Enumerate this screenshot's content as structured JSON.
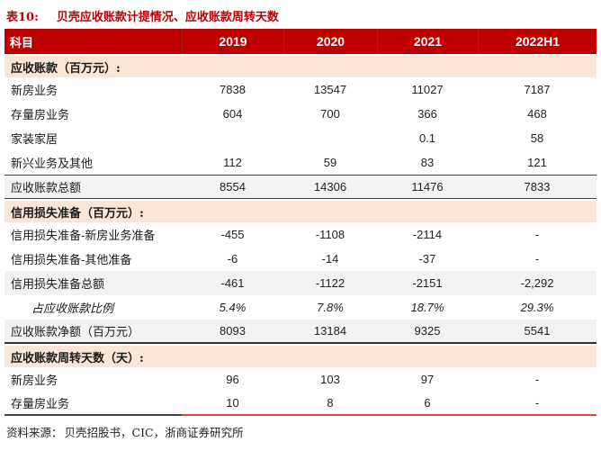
{
  "title": {
    "tag": "表10:",
    "text": "贝壳应收账款计提情况、应收账款周转天数"
  },
  "colors": {
    "header_bg": "#c00000",
    "title_red": "#c00000",
    "section_bg": "#fbe5d6",
    "total_row_bg": "#f2f2f2",
    "bottom_rule_red": "#e8423c",
    "rule_black": "#424242"
  },
  "table": {
    "columns": [
      "科目",
      "2019",
      "2020",
      "2021",
      "2022H1"
    ],
    "rows": [
      {
        "type": "section",
        "label": "应收账款（百万元）:"
      },
      {
        "type": "data",
        "label": "新房业务",
        "values": [
          "7838",
          "13547",
          "11027",
          "7187"
        ]
      },
      {
        "type": "data",
        "label": "存量房业务",
        "values": [
          "604",
          "700",
          "366",
          "468"
        ]
      },
      {
        "type": "data",
        "label": "家装家居",
        "values": [
          "",
          "",
          "0.1",
          "58"
        ]
      },
      {
        "type": "data",
        "label": "新兴业务及其他",
        "values": [
          "112",
          "59",
          "83",
          "121"
        ]
      },
      {
        "type": "total",
        "label": "应收账款总额",
        "values": [
          "8554",
          "14306",
          "11476",
          "7833"
        ]
      },
      {
        "type": "section",
        "label": "信用损失准备（百万元）:"
      },
      {
        "type": "data",
        "label": "信用损失准备-新房业务准备",
        "values": [
          "-455",
          "-1108",
          "-2114",
          "-"
        ]
      },
      {
        "type": "data",
        "label": "信用损失准备-其他准备",
        "values": [
          "-6",
          "-14",
          "-37",
          "-"
        ]
      },
      {
        "type": "total",
        "label": "信用损失准备总额",
        "values": [
          "-461",
          "-1122",
          "-2151",
          "-2,292"
        ]
      },
      {
        "type": "ratio",
        "label": "占应收账款比例",
        "values": [
          "5.4%",
          "7.8%",
          "18.7%",
          "29.3%"
        ]
      },
      {
        "type": "total",
        "label": "应收账款净额（百万元）",
        "values": [
          "8093",
          "13184",
          "9325",
          "5541"
        ]
      },
      {
        "type": "section",
        "label": "应收账款周转天数（天）:"
      },
      {
        "type": "data",
        "label": "新房业务",
        "values": [
          "96",
          "103",
          "97",
          "-"
        ]
      },
      {
        "type": "data",
        "label": "存量房业务",
        "values": [
          "10",
          "8",
          "6",
          "-"
        ]
      }
    ]
  },
  "footer": {
    "source_label": "资料来源：",
    "source_text": "贝壳招股书，CIC，浙商证券研究所"
  }
}
